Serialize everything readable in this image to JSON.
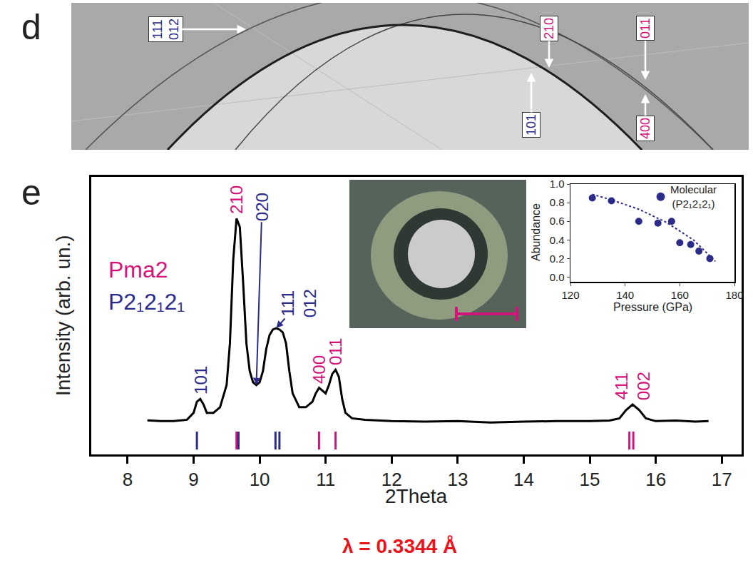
{
  "chart_data": [
    {
      "type": "line",
      "panel_label": "e",
      "x_label": "2Theta",
      "y_label": "Intensity (arb. un.)",
      "x": [
        8.3,
        8.5,
        8.7,
        8.9,
        9.0,
        9.05,
        9.1,
        9.15,
        9.2,
        9.3,
        9.4,
        9.5,
        9.55,
        9.6,
        9.65,
        9.7,
        9.75,
        9.8,
        9.85,
        9.9,
        9.95,
        10.0,
        10.05,
        10.1,
        10.15,
        10.2,
        10.25,
        10.3,
        10.35,
        10.4,
        10.45,
        10.5,
        10.6,
        10.7,
        10.8,
        10.85,
        10.9,
        10.95,
        11.0,
        11.05,
        11.1,
        11.15,
        11.2,
        11.25,
        11.3,
        11.4,
        11.6,
        12.0,
        12.5,
        13.0,
        13.5,
        14.0,
        14.5,
        15.0,
        15.3,
        15.45,
        15.55,
        15.65,
        15.75,
        15.85,
        16.0,
        16.3,
        16.6,
        16.8
      ],
      "values": [
        12.3,
        12.0,
        12.0,
        12.5,
        15,
        19,
        20,
        18,
        15,
        15,
        17,
        25,
        40,
        70,
        85,
        82,
        62,
        40,
        30,
        26,
        25,
        26,
        30,
        38,
        43,
        45,
        45.5,
        45,
        44,
        40,
        30,
        22,
        17,
        17,
        19,
        22,
        24,
        23,
        22,
        25,
        29,
        30.5,
        28,
        20,
        15,
        13,
        12.5,
        12,
        11.8,
        12,
        11.5,
        11.8,
        12,
        12,
        12.2,
        13,
        16,
        18,
        16,
        13,
        12,
        12.2,
        11.8,
        12
      ],
      "color": "#000000",
      "xlim": [
        7.45,
        17.3
      ],
      "xticks": [
        8,
        9,
        10,
        11,
        12,
        13,
        14,
        15,
        16,
        17
      ],
      "ylim": [
        0,
        100
      ],
      "tick_labels": "x",
      "grid": false,
      "phases": [
        {
          "name": "Pma2",
          "color": "#d4147a",
          "marker": "tick",
          "reflections": [
            9.65,
            10.9,
            11.15,
            15.6,
            15.66
          ],
          "reflection_y": 5
        },
        {
          "name": "P2₁2₁2₁",
          "color": "#2b2b8a",
          "marker": "tick",
          "reflections": [
            9.05,
            9.68,
            10.24,
            10.3
          ],
          "reflection_y": 5
        }
      ],
      "peak_labels": [
        {
          "texts": [
            "101"
          ],
          "x": 9.1,
          "phase": "P2₁2₁2₁"
        },
        {
          "texts": [
            "210"
          ],
          "x": 9.65,
          "phase": "Pma2"
        },
        {
          "texts": [
            "020"
          ],
          "x": 9.95,
          "phase": "P2₁2₁2₁"
        },
        {
          "texts": [
            "111",
            "012"
          ],
          "x": 10.25,
          "phase": "P2₁2₁2₁"
        },
        {
          "texts": [
            "400"
          ],
          "x": 10.9,
          "phase": "Pma2"
        },
        {
          "texts": [
            "011"
          ],
          "x": 11.15,
          "phase": "Pma2"
        },
        {
          "texts": [
            "411",
            "002"
          ],
          "x": 15.65,
          "phase": "Pma2"
        }
      ],
      "annotations": [
        {
          "text": "λ = 0.3344 Å",
          "color": "#e8141b"
        }
      ]
    },
    {
      "type": "scatter",
      "x_label": "Pressure (GPa)",
      "y_label": "Abundance",
      "series": [
        {
          "name": "Molecular (P2₁2₁2₁)",
          "color": "#2b2b8a",
          "marker": "circle",
          "x": [
            128,
            135,
            145,
            152,
            157,
            160,
            164,
            167,
            171
          ],
          "values": [
            0.85,
            0.82,
            0.6,
            0.58,
            0.6,
            0.37,
            0.35,
            0.28,
            0.2
          ]
        },
        {
          "type": "line",
          "line_style": "dot",
          "color": "#2b2b8a",
          "x": [
            128,
            135,
            145,
            155,
            165,
            173
          ],
          "values": [
            0.89,
            0.83,
            0.73,
            0.59,
            0.4,
            0.17
          ]
        }
      ],
      "xlim": [
        120,
        180
      ],
      "xticks": [
        120,
        140,
        160,
        180
      ],
      "ylim": [
        -0.05,
        1.0
      ],
      "yticks": [
        {
          "value": 0,
          "label": "0.0"
        },
        {
          "value": 0.2,
          "label": "0.2"
        },
        {
          "value": 0.4,
          "label": "0.4"
        },
        {
          "value": 0.6,
          "label": "0.6"
        },
        {
          "value": 0.8,
          "label": "0.8"
        },
        {
          "value": 1.0,
          "label": "1.0"
        }
      ],
      "grid": false,
      "legend": "top right"
    }
  ],
  "panel_d": {
    "panel_label": "d",
    "labels": [
      {
        "texts": [
          "111",
          "012"
        ],
        "phase": "P2₁2₁2₁"
      },
      {
        "texts": [
          "210"
        ],
        "phase": "Pma2"
      },
      {
        "texts": [
          "101"
        ],
        "phase": "P2₁2₁2₁"
      },
      {
        "texts": [
          "011"
        ],
        "phase": "Pma2"
      },
      {
        "texts": [
          "400"
        ],
        "phase": "Pma2"
      }
    ]
  }
}
